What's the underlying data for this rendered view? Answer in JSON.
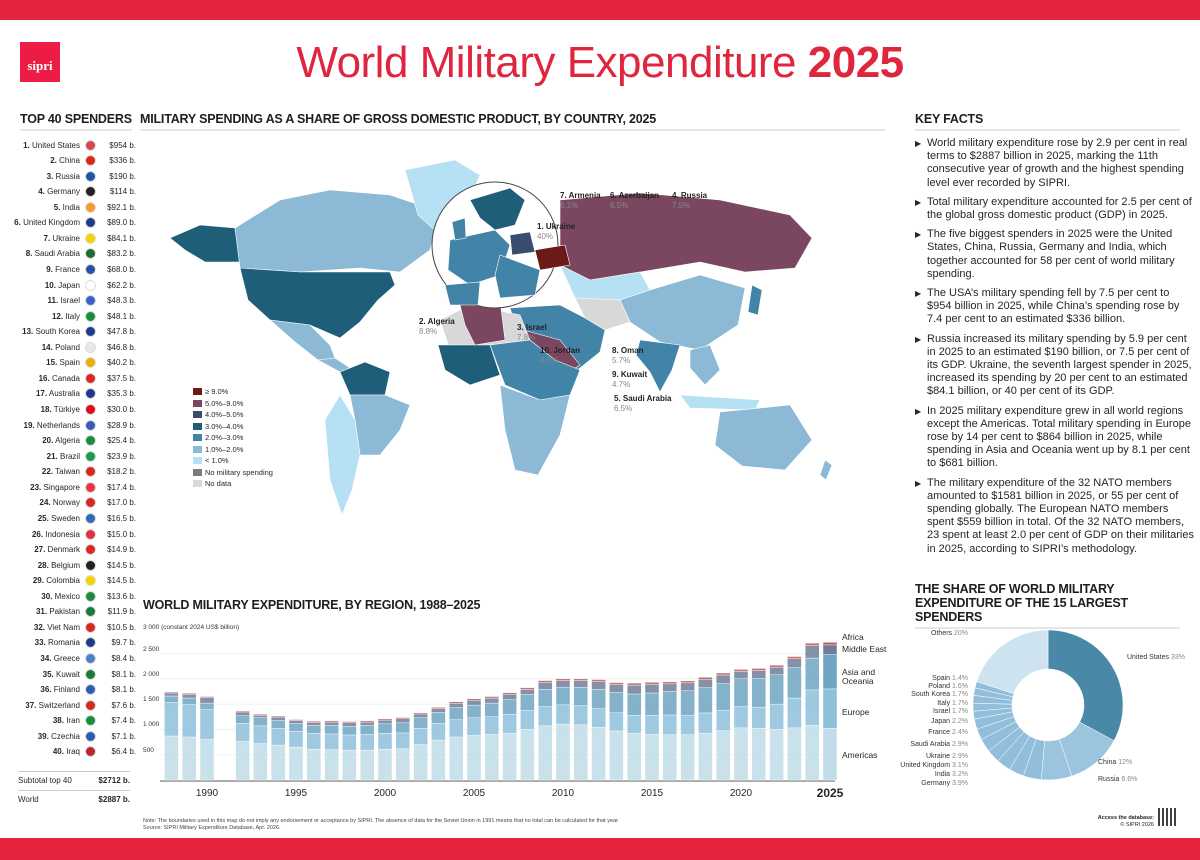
{
  "header": {
    "logo": "sipri",
    "title": "World Military Expenditure",
    "title_year": "2025"
  },
  "colors": {
    "accent": "#e4233f"
  },
  "top40": {
    "title": "TOP 40 SPENDERS",
    "items": [
      [
        "1.",
        "United States",
        "$954 b."
      ],
      [
        "2.",
        "China",
        "$336 b."
      ],
      [
        "3.",
        "Russia",
        "$190 b."
      ],
      [
        "4.",
        "Germany",
        "$114 b."
      ],
      [
        "5.",
        "India",
        "$92.1 b."
      ],
      [
        "6.",
        "United Kingdom",
        "$89.0 b."
      ],
      [
        "7.",
        "Ukraine",
        "$84.1 b."
      ],
      [
        "8.",
        "Saudi Arabia",
        "$83.2 b."
      ],
      [
        "9.",
        "France",
        "$68.0 b."
      ],
      [
        "10.",
        "Japan",
        "$62.2 b."
      ],
      [
        "11.",
        "Israel",
        "$48.3 b."
      ],
      [
        "12.",
        "Italy",
        "$48.1 b."
      ],
      [
        "13.",
        "South Korea",
        "$47.8 b."
      ],
      [
        "14.",
        "Poland",
        "$46.8 b."
      ],
      [
        "15.",
        "Spain",
        "$40.2 b."
      ],
      [
        "16.",
        "Canada",
        "$37.5 b."
      ],
      [
        "17.",
        "Australia",
        "$35.3 b."
      ],
      [
        "18.",
        "Türkiye",
        "$30.0 b."
      ],
      [
        "19.",
        "Netherlands",
        "$28.9 b."
      ],
      [
        "20.",
        "Algeria",
        "$25.4 b."
      ],
      [
        "21.",
        "Brazil",
        "$23.9 b."
      ],
      [
        "22.",
        "Taiwan",
        "$18.2 b."
      ],
      [
        "23.",
        "Singapore",
        "$17.4 b."
      ],
      [
        "24.",
        "Norway",
        "$17.0 b."
      ],
      [
        "25.",
        "Sweden",
        "$16.5 b."
      ],
      [
        "26.",
        "Indonesia",
        "$15.0 b."
      ],
      [
        "27.",
        "Denmark",
        "$14.9 b."
      ],
      [
        "28.",
        "Belgium",
        "$14.5 b."
      ],
      [
        "29.",
        "Colombia",
        "$14.5 b."
      ],
      [
        "30.",
        "Mexico",
        "$13.6 b."
      ],
      [
        "31.",
        "Pakistan",
        "$11.9 b."
      ],
      [
        "32.",
        "Viet Nam",
        "$10.5 b."
      ],
      [
        "33.",
        "Romania",
        "$9.7 b."
      ],
      [
        "34.",
        "Greece",
        "$8.4 b."
      ],
      [
        "35.",
        "Kuwait",
        "$8.1 b."
      ],
      [
        "36.",
        "Finland",
        "$8.1 b."
      ],
      [
        "37.",
        "Switzerland",
        "$7.6 b."
      ],
      [
        "38.",
        "Iran",
        "$7.4 b."
      ],
      [
        "39.",
        "Czechia",
        "$7.1 b."
      ],
      [
        "40.",
        "Iraq",
        "$6.4 b."
      ]
    ],
    "subtotal_label": "Subtotal top 40",
    "subtotal_value": "$2712 b.",
    "world_label": "World",
    "world_value": "$2887 b."
  },
  "map": {
    "title": "MILITARY SPENDING AS A SHARE OF GROSS DOMESTIC PRODUCT, BY COUNTRY, 2025",
    "labels": [
      {
        "name": "1. Ukraine",
        "value": "40%"
      },
      {
        "name": "2. Algeria",
        "value": "8.8%"
      },
      {
        "name": "3. Israel",
        "value": "7.8%"
      },
      {
        "name": "4. Russia",
        "value": "7.5%"
      },
      {
        "name": "5. Saudi Arabia",
        "value": "6.5%"
      },
      {
        "name": "6. Azerbaijan",
        "value": "6.5%"
      },
      {
        "name": "7. Armenia",
        "value": "6.1%"
      },
      {
        "name": "8. Oman",
        "value": "5.7%"
      },
      {
        "name": "9. Kuwait",
        "value": "4.7%"
      },
      {
        "name": "10. Jordan",
        "value": "4.6%"
      }
    ],
    "legend": [
      {
        "label": "≥ 9.0%",
        "color": "#6b1a17"
      },
      {
        "label": "5.0%–9.0%",
        "color": "#7a4660"
      },
      {
        "label": "4.0%–5.0%",
        "color": "#394d6e"
      },
      {
        "label": "3.0%–4.0%",
        "color": "#1e5e78"
      },
      {
        "label": "2.0%–3.0%",
        "color": "#4284a8"
      },
      {
        "label": "1.0%–2.0%",
        "color": "#8bb9d6"
      },
      {
        "label": "< 1.0%",
        "color": "#b6e0f3"
      },
      {
        "label": "No military spending",
        "color": "#7b7b7b"
      },
      {
        "label": "No data",
        "color": "#d8d8d8"
      }
    ]
  },
  "key_facts": {
    "title": "KEY FACTS",
    "items": [
      "World military expenditure rose by 2.9 per cent in real terms to $2887 billion in 2025, marking the 11th consecutive year of growth and the highest spending level ever recorded by SIPRI.",
      "Total military expenditure accounted for 2.5 per cent of the global gross domestic product (GDP) in 2025.",
      "The five biggest spenders in 2025 were the United States, China, Russia, Germany and India, which together accounted for 58 per cent of world military spending.",
      "The USA’s military spending fell by 7.5 per cent to $954 billion in 2025, while China’s spending rose by 7.4 per cent to an estimated $336 billion.",
      "Russia increased its military spending by 5.9 per cent in 2025 to an estimated $190 billion, or 7.5 per cent of its GDP. Ukraine, the seventh largest spender in 2025, increased its spending by 20 per cent to an estimated $84.1 billion, or 40 per cent of its GDP.",
      "In 2025 military expenditure grew in all world regions except the Americas. Total military spending in Europe rose by 14 per cent to $864 billion in 2025, while spending in Asia and Oceania went up by 8.1 per cent to $681 billion.",
      "The military expenditure of the 32 NATO members amounted to $1581 billion in 2025, or 55 per cent of spending globally. The European NATO members spent $559 billion in total. Of the 32 NATO members, 23 spent at least 2.0 per cent of GDP on their militaries in 2025, according to SIPRI’s methodology."
    ]
  },
  "chart_data": [
    {
      "type": "bar",
      "stacked": true,
      "title": "WORLD MILITARY EXPENDITURE, BY REGION, 1988–2025",
      "ylabel": "(constant 2024 US$ billion)",
      "ylim": [
        0,
        3000
      ],
      "yticks": [
        "500",
        "1 000",
        "1 500",
        "2 000",
        "2 500",
        "3 000"
      ],
      "xticks": [
        "1990",
        "1995",
        "2000",
        "2005",
        "2010",
        "2015",
        "2020",
        "2025"
      ],
      "x": [
        1988,
        1989,
        1990,
        1991,
        1992,
        1993,
        1994,
        1995,
        1996,
        1997,
        1998,
        1999,
        2000,
        2001,
        2002,
        2003,
        2004,
        2005,
        2006,
        2007,
        2008,
        2009,
        2010,
        2011,
        2012,
        2013,
        2014,
        2015,
        2016,
        2017,
        2018,
        2019,
        2020,
        2021,
        2022,
        2023,
        2024,
        2025
      ],
      "series": [
        {
          "name": "Americas",
          "color": "#bfdce8",
          "values": [
            870,
            850,
            800,
            null,
            760,
            720,
            690,
            650,
            610,
            600,
            590,
            590,
            610,
            620,
            700,
            790,
            850,
            880,
            900,
            925,
            1000,
            1070,
            1105,
            1090,
            1040,
            970,
            920,
            900,
            895,
            895,
            925,
            975,
            1030,
            1020,
            1000,
            1030,
            1080,
            1020
          ]
        },
        {
          "name": "Europe",
          "color": "#8ec0da",
          "values": [
            660,
            640,
            590,
            null,
            360,
            350,
            330,
            310,
            310,
            310,
            300,
            310,
            310,
            310,
            320,
            330,
            340,
            350,
            350,
            370,
            380,
            380,
            380,
            380,
            370,
            360,
            360,
            380,
            390,
            380,
            400,
            400,
            420,
            420,
            500,
            590,
            700,
            780
          ]
        },
        {
          "name": "Asia and Oceania",
          "color": "#6fa5c2",
          "values": [
            130,
            130,
            130,
            null,
            150,
            160,
            160,
            160,
            160,
            170,
            170,
            180,
            190,
            200,
            210,
            220,
            240,
            250,
            270,
            290,
            310,
            340,
            350,
            360,
            380,
            400,
            420,
            440,
            470,
            490,
            500,
            530,
            550,
            570,
            580,
            600,
            630,
            680
          ]
        },
        {
          "name": "Middle East",
          "color": "#6e7e9a",
          "values": [
            60,
            75,
            110,
            null,
            75,
            50,
            65,
            55,
            55,
            65,
            70,
            65,
            75,
            80,
            75,
            70,
            85,
            95,
            100,
            110,
            100,
            140,
            130,
            135,
            155,
            155,
            175,
            170,
            145,
            155,
            165,
            170,
            145,
            155,
            150,
            175,
            245,
            190
          ]
        },
        {
          "name": "Africa",
          "color": "#c0595a",
          "values": [
            20,
            20,
            20,
            null,
            20,
            20,
            20,
            20,
            25,
            25,
            25,
            25,
            25,
            25,
            25,
            25,
            30,
            30,
            30,
            30,
            35,
            35,
            35,
            35,
            40,
            40,
            40,
            40,
            40,
            40,
            40,
            40,
            40,
            40,
            40,
            45,
            50,
            50
          ]
        }
      ]
    },
    {
      "type": "pie",
      "donut": true,
      "title": "THE SHARE OF WORLD MILITARY EXPENDITURE OF THE 15 LARGEST SPENDERS",
      "slices": [
        {
          "label": "United States",
          "pct": "33%",
          "value": 33
        },
        {
          "label": "China",
          "pct": "12%",
          "value": 12
        },
        {
          "label": "Russia",
          "pct": "6.6%",
          "value": 6.6
        },
        {
          "label": "Germany",
          "pct": "3.9%",
          "value": 3.9
        },
        {
          "label": "India",
          "pct": "3.2%",
          "value": 3.2
        },
        {
          "label": "United Kingdom",
          "pct": "3.1%",
          "value": 3.1
        },
        {
          "label": "Ukraine",
          "pct": "2.9%",
          "value": 2.9
        },
        {
          "label": "Saudi Arabia",
          "pct": "2.9%",
          "value": 2.9
        },
        {
          "label": "France",
          "pct": "2.4%",
          "value": 2.4
        },
        {
          "label": "Japan",
          "pct": "2.2%",
          "value": 2.2
        },
        {
          "label": "Israel",
          "pct": "1.7%",
          "value": 1.7
        },
        {
          "label": "Italy",
          "pct": "1.7%",
          "value": 1.7
        },
        {
          "label": "South Korea",
          "pct": "1.7%",
          "value": 1.7
        },
        {
          "label": "Poland",
          "pct": "1.6%",
          "value": 1.6
        },
        {
          "label": "Spain",
          "pct": "1.4%",
          "value": 1.4
        },
        {
          "label": "Others",
          "pct": "20%",
          "value": 20
        }
      ]
    }
  ],
  "footer": {
    "note": "Note: The boundaries used in this map do not imply any endorsement or acceptance by SIPRI. The absence of data for the Soviet Union in 1991 means that no total can be calculated for that year.",
    "source": "Source: SIPRI Military Expenditure Database, Apr. 2026.",
    "access": "Access the database:",
    "copyright": "© SIPRI 2026"
  }
}
